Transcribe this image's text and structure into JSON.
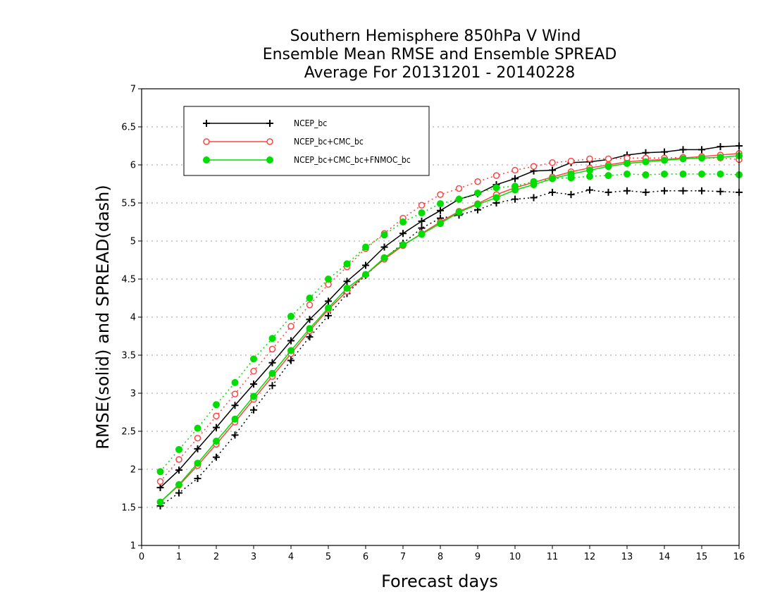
{
  "chart_data": {
    "type": "line",
    "title_lines": [
      "Southern Hemisphere 850hPa V Wind",
      "Ensemble Mean RMSE and Ensemble SPREAD",
      "Average For 20131201 - 20140228"
    ],
    "xlabel": "Forecast days",
    "ylabel": "RMSE(solid) and SPREAD(dash)",
    "xlim": [
      0,
      16
    ],
    "ylim": [
      1,
      7
    ],
    "xticks": [
      "0",
      "1",
      "2",
      "3",
      "4",
      "5",
      "6",
      "7",
      "8",
      "9",
      "10",
      "11",
      "12",
      "13",
      "14",
      "15",
      "16"
    ],
    "yticks": [
      "1",
      "1.5",
      "2",
      "2.5",
      "3",
      "3.5",
      "4",
      "4.5",
      "5",
      "5.5",
      "6",
      "6.5",
      "7"
    ],
    "grid": "horizontal dotted",
    "legend_position": "top-left",
    "x": [
      0.5,
      1,
      1.5,
      2,
      2.5,
      3,
      3.5,
      4,
      4.5,
      5,
      5.5,
      6,
      6.5,
      7,
      7.5,
      8,
      8.5,
      9,
      9.5,
      10,
      10.5,
      11,
      11.5,
      12,
      12.5,
      13,
      13.5,
      14,
      14.5,
      15,
      15.5,
      16
    ],
    "series": [
      {
        "name": "NCEP_bc",
        "color": "#000000",
        "marker": "plus",
        "rmse": [
          1.76,
          1.99,
          2.27,
          2.55,
          2.84,
          3.12,
          3.4,
          3.69,
          3.97,
          4.21,
          4.47,
          4.68,
          4.92,
          5.1,
          5.26,
          5.4,
          5.55,
          5.62,
          5.74,
          5.82,
          5.92,
          5.93,
          6.03,
          6.04,
          6.07,
          6.13,
          6.16,
          6.17,
          6.2,
          6.2,
          6.24,
          6.25
        ],
        "spread": [
          1.52,
          1.69,
          1.88,
          2.16,
          2.45,
          2.78,
          3.1,
          3.43,
          3.74,
          4.02,
          4.31,
          4.55,
          4.77,
          4.97,
          5.17,
          5.3,
          5.34,
          5.41,
          5.5,
          5.55,
          5.57,
          5.64,
          5.61,
          5.67,
          5.64,
          5.66,
          5.64,
          5.66,
          5.66,
          5.66,
          5.65,
          5.64
        ]
      },
      {
        "name": "NCEP_bc+CMC_bc",
        "color": "#ff4444",
        "marker": "open-circle",
        "rmse": [
          1.57,
          1.79,
          2.05,
          2.33,
          2.62,
          2.92,
          3.22,
          3.52,
          3.82,
          4.1,
          4.34,
          4.56,
          4.76,
          4.94,
          5.1,
          5.25,
          5.39,
          5.49,
          5.61,
          5.7,
          5.77,
          5.84,
          5.91,
          5.96,
          6.0,
          6.04,
          6.06,
          6.07,
          6.09,
          6.11,
          6.13,
          6.15
        ],
        "spread": [
          1.84,
          2.13,
          2.41,
          2.7,
          2.99,
          3.29,
          3.58,
          3.88,
          4.16,
          4.43,
          4.66,
          4.9,
          5.1,
          5.3,
          5.47,
          5.61,
          5.69,
          5.78,
          5.86,
          5.93,
          5.98,
          6.03,
          6.05,
          6.08,
          6.08,
          6.09,
          6.09,
          6.09,
          6.1,
          6.09,
          6.09,
          6.07
        ]
      },
      {
        "name": "NCEP_bc+CMC_bc+FNMOC_bc",
        "color": "#00dd00",
        "marker": "filled-circle",
        "rmse": [
          1.57,
          1.8,
          2.08,
          2.37,
          2.66,
          2.96,
          3.26,
          3.56,
          3.85,
          4.12,
          4.38,
          4.56,
          4.78,
          4.95,
          5.09,
          5.23,
          5.38,
          5.48,
          5.57,
          5.67,
          5.74,
          5.82,
          5.88,
          5.93,
          5.98,
          6.02,
          6.04,
          6.06,
          6.08,
          6.09,
          6.1,
          6.12
        ],
        "spread": [
          1.97,
          2.26,
          2.54,
          2.85,
          3.14,
          3.45,
          3.72,
          4.01,
          4.25,
          4.5,
          4.7,
          4.92,
          5.08,
          5.25,
          5.37,
          5.49,
          5.55,
          5.63,
          5.7,
          5.72,
          5.78,
          5.82,
          5.83,
          5.85,
          5.86,
          5.88,
          5.87,
          5.88,
          5.88,
          5.88,
          5.88,
          5.87
        ]
      }
    ]
  }
}
